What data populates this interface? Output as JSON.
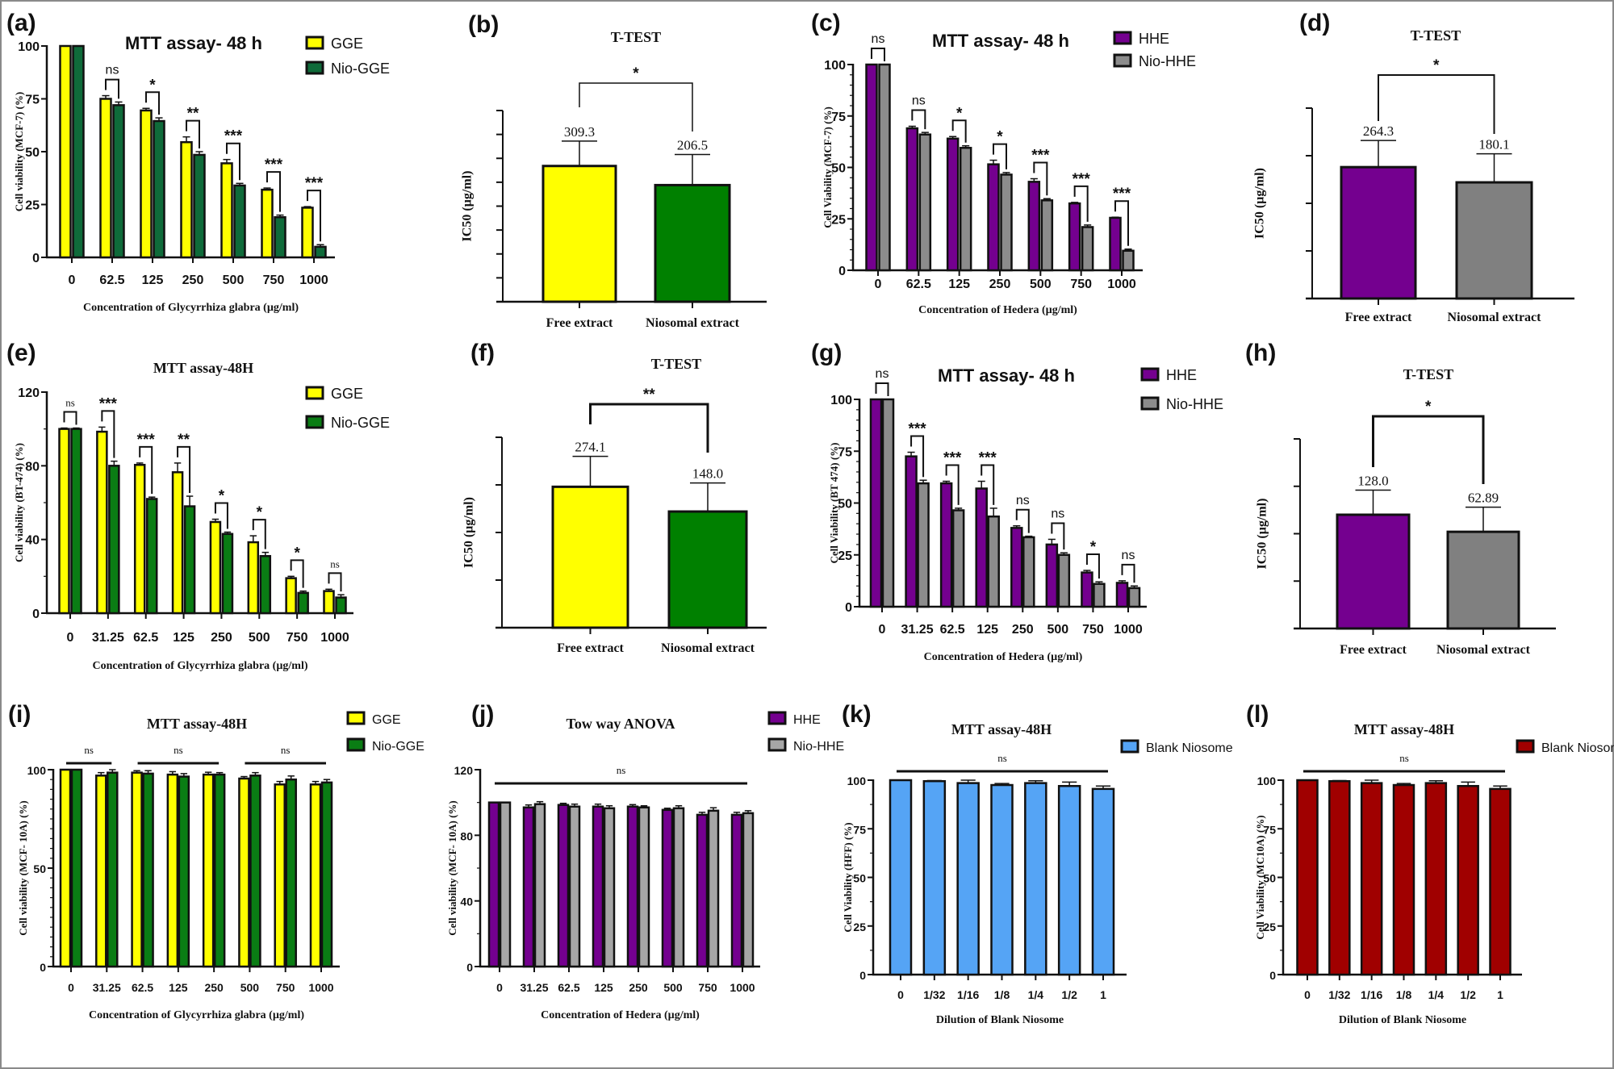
{
  "chart_data": [
    {
      "panel": "(a)",
      "type": "bar",
      "title": "MTT assay- 48 h",
      "xlabel": "Concentration of Glycyrrhiza glabra (µg/ml)",
      "ylabel": "Cell viability (MCF-7) (%)",
      "categories": [
        "0",
        "62.5",
        "125",
        "250",
        "500",
        "750",
        "1000"
      ],
      "ylim": [
        0,
        100
      ],
      "yticks": [
        "0",
        "25",
        "50",
        "75",
        "100"
      ],
      "legend": "top-right",
      "series": [
        {
          "name": "GGE",
          "color": "#ffff00",
          "values": [
            100,
            75,
            69.5,
            54.5,
            44.5,
            32,
            23.5
          ],
          "errors": [
            0,
            1.5,
            1,
            2.5,
            1.8,
            0.8,
            0.5
          ]
        },
        {
          "name": "Nio-GGE",
          "color": "#0f6b3a",
          "values": [
            100,
            72,
            64.5,
            48.5,
            34,
            19,
            5
          ],
          "errors": [
            0,
            1.5,
            1.5,
            1.5,
            1,
            1,
            1
          ]
        }
      ],
      "significance": [
        null,
        "ns",
        "*",
        "**",
        "***",
        "***",
        "***"
      ]
    },
    {
      "panel": "(b)",
      "type": "bar",
      "title": "T-TEST",
      "ylabel": "IC50 (µg/ml)",
      "categories": [
        "Free extract",
        "Niosomal extract"
      ],
      "values": [
        309.3,
        206.5
      ],
      "value_labels": [
        "309.3",
        "206.5"
      ],
      "bar_level": [
        0.71,
        0.61
      ],
      "error_level": [
        0.84,
        0.77
      ],
      "colors": [
        "#ffff00",
        "#008000"
      ],
      "significance": "*"
    },
    {
      "panel": "(c)",
      "type": "bar",
      "title": "MTT assay- 48 h",
      "xlabel": "Concentration of Hedera (µg/ml)",
      "ylabel": "Cell Viability (MCF-7) (%)",
      "categories": [
        "0",
        "62.5",
        "125",
        "250",
        "500",
        "750",
        "1000"
      ],
      "ylim": [
        0,
        100
      ],
      "yticks": [
        "0",
        "25",
        "50",
        "75",
        "100"
      ],
      "legend": "top-right",
      "series": [
        {
          "name": "HHE",
          "color": "#74008f",
          "values": [
            100,
            69,
            64,
            51.5,
            43,
            32.5,
            25.5
          ],
          "errors": [
            0,
            1,
            1,
            2,
            1.5,
            0.5,
            0.3
          ]
        },
        {
          "name": "Nio-HHE",
          "color": "#8c8c8c",
          "values": [
            100,
            66,
            59.5,
            46.5,
            34,
            21,
            9.5
          ],
          "errors": [
            0,
            1,
            1,
            1,
            0.8,
            1,
            0.8
          ]
        }
      ],
      "significance": [
        "ns",
        "ns",
        "*",
        "*",
        "***",
        "***",
        "***"
      ]
    },
    {
      "panel": "(d)",
      "type": "bar",
      "title": "T-TEST",
      "ylabel": "IC50 (µg/ml)",
      "categories": [
        "Free extract",
        "Niosomal extract"
      ],
      "values": [
        264.3,
        180.1
      ],
      "value_labels": [
        "264.3",
        "180.1"
      ],
      "bar_level": [
        0.69,
        0.61
      ],
      "error_level": [
        0.83,
        0.76
      ],
      "colors": [
        "#74008f",
        "#808080"
      ],
      "significance": "*"
    },
    {
      "panel": "(e)",
      "type": "bar",
      "title": "MTT assay-48H",
      "xlabel": "Concentration of Glycyrrhiza glabra (µg/ml)",
      "ylabel": "Cell viability (BT-474) (%)",
      "categories": [
        "0",
        "31.25",
        "62.5",
        "125",
        "250",
        "500",
        "750",
        "1000"
      ],
      "ylim": [
        0,
        120
      ],
      "yticks": [
        "0",
        "40",
        "80",
        "120"
      ],
      "legend": "top-right",
      "series": [
        {
          "name": "GGE",
          "color": "#ffff00",
          "values": [
            100,
            98.5,
            80.5,
            76.5,
            49.5,
            38.5,
            19,
            12
          ],
          "errors": [
            0.5,
            2.5,
            1,
            5,
            1.5,
            3.5,
            1,
            1
          ]
        },
        {
          "name": "Nio-GGE",
          "color": "#0a7d14",
          "values": [
            100,
            80,
            62,
            58,
            43,
            31,
            11,
            8.5
          ],
          "errors": [
            0.5,
            2.5,
            1,
            5.5,
            1,
            2,
            1,
            1.5
          ]
        }
      ],
      "significance": [
        "ns",
        "***",
        "***",
        "**",
        "*",
        "*",
        "*",
        "ns"
      ]
    },
    {
      "panel": "(f)",
      "type": "bar",
      "title": "T-TEST",
      "ylabel": "IC50 (µg/ml)",
      "categories": [
        "Free extract",
        "Niosomal extract"
      ],
      "values": [
        274.1,
        148.0
      ],
      "value_labels": [
        "274.1",
        "148.0"
      ],
      "bar_level": [
        0.74,
        0.61
      ],
      "error_level": [
        0.9,
        0.76
      ],
      "colors": [
        "#ffff00",
        "#008000"
      ],
      "significance": "**"
    },
    {
      "panel": "(g)",
      "type": "bar",
      "title": "MTT assay- 48 h",
      "xlabel": "Concentration of Hedera (µg/ml)",
      "ylabel": "Cell Viability (BT 474) (%)",
      "categories": [
        "0",
        "31.25",
        "62.5",
        "125",
        "250",
        "500",
        "750",
        "1000"
      ],
      "ylim": [
        0,
        100
      ],
      "yticks": [
        "0",
        "25",
        "50",
        "75",
        "100"
      ],
      "legend": "top-right",
      "series": [
        {
          "name": "HHE",
          "color": "#74008f",
          "values": [
            100,
            72.5,
            59.5,
            57,
            38,
            30,
            16.5,
            11.5
          ],
          "errors": [
            0,
            2,
            1,
            3.5,
            1,
            2.5,
            1,
            1
          ]
        },
        {
          "name": "Nio-HHE",
          "color": "#8c8c8c",
          "values": [
            100,
            59.5,
            46.5,
            43.5,
            33.5,
            25,
            11,
            9
          ],
          "errors": [
            0,
            1.5,
            1,
            4,
            0.5,
            1,
            1,
            1
          ]
        }
      ],
      "significance": [
        "ns",
        "***",
        "***",
        "***",
        "ns",
        "ns",
        "*",
        "ns"
      ]
    },
    {
      "panel": "(h)",
      "type": "bar",
      "title": "T-TEST",
      "ylabel": "IC50 (µg/ml)",
      "categories": [
        "Free extract",
        "Niosomal extract"
      ],
      "values": [
        128.0,
        62.89
      ],
      "value_labels": [
        "128.0",
        "62.89"
      ],
      "bar_level": [
        0.6,
        0.51
      ],
      "error_level": [
        0.73,
        0.64
      ],
      "colors": [
        "#74008f",
        "#808080"
      ],
      "significance": "*"
    },
    {
      "panel": "(i)",
      "type": "bar",
      "title": "MTT assay-48H",
      "xlabel": "Concentration of Glycyrrhiza glabra (µg/ml)",
      "ylabel": "Cell viability (MCF- 10A)  (%)",
      "categories": [
        "0",
        "31.25",
        "62.5",
        "125",
        "250",
        "500",
        "750",
        "1000"
      ],
      "ylim": [
        0,
        100
      ],
      "yticks": [
        "0",
        "50",
        "100"
      ],
      "legend": "top-right",
      "series": [
        {
          "name": "GGE",
          "color": "#ffff00",
          "values": [
            100,
            97,
            98.5,
            97.5,
            97.5,
            95.5,
            92.5,
            92.5
          ],
          "errors": [
            0,
            1.5,
            1,
            1.5,
            1.2,
            1,
            1.5,
            1.5
          ]
        },
        {
          "name": "Nio-GGE",
          "color": "#0a7d14",
          "values": [
            100,
            98.5,
            98,
            96.5,
            97.5,
            97,
            95,
            93.5
          ],
          "errors": [
            0,
            1.5,
            1.5,
            1.5,
            1,
            1.5,
            1.8,
            1.5
          ]
        }
      ],
      "significance_spans": [
        {
          "from": 0,
          "to": 1,
          "label": "ns"
        },
        {
          "from": 2,
          "to": 4,
          "label": "ns"
        },
        {
          "from": 5,
          "to": 7,
          "label": "ns"
        }
      ]
    },
    {
      "panel": "(j)",
      "type": "bar",
      "title": "Tow way ANOVA",
      "xlabel": "Concentration of Hedera (µg/ml)",
      "ylabel": "Cell viability (MCF- 10A)  (%)",
      "categories": [
        "0",
        "31.25",
        "62.5",
        "125",
        "250",
        "500",
        "750",
        "1000"
      ],
      "ylim": [
        0,
        120
      ],
      "yticks": [
        "0",
        "40",
        "80",
        "120"
      ],
      "legend": "top-right",
      "series": [
        {
          "name": "HHE",
          "color": "#74008f",
          "values": [
            100,
            97,
            98.5,
            97.5,
            97.5,
            95.5,
            92.5,
            92.5
          ],
          "errors": [
            0,
            1.5,
            1,
            1.5,
            1.2,
            1,
            1.5,
            1.5
          ]
        },
        {
          "name": "Nio-HHE",
          "color": "#a6a6a6",
          "values": [
            100,
            99,
            97.5,
            96.5,
            97,
            96.5,
            95,
            93.5
          ],
          "errors": [
            0,
            1.5,
            1.5,
            1.5,
            1,
            1.5,
            1.8,
            1.5
          ]
        }
      ],
      "significance_spans": [
        {
          "from": 0,
          "to": 7,
          "label": "ns"
        }
      ]
    },
    {
      "panel": "(k)",
      "type": "bar",
      "title": "MTT assay-48H",
      "xlabel": "Dilution of Blank Niosome",
      "ylabel": "Cell Viability (HFF) (%)",
      "categories": [
        "0",
        "1/32",
        "1/16",
        "1/8",
        "1/4",
        "1/2",
        "1"
      ],
      "ylim": [
        0,
        100
      ],
      "yticks": [
        "0",
        "25",
        "50",
        "75",
        "100"
      ],
      "legend": "top-right",
      "series": [
        {
          "name": "Blank Niosome",
          "color": "#55a4f5",
          "values": [
            100,
            99.5,
            98.5,
            97.5,
            98.5,
            97,
            95.5
          ],
          "errors": [
            0,
            0.3,
            1.5,
            0.8,
            1.2,
            2,
            1.5
          ]
        }
      ],
      "significance_spans": [
        {
          "from": 0,
          "to": 6,
          "label": "ns"
        }
      ]
    },
    {
      "panel": "(l)",
      "type": "bar",
      "title": "MTT assay-48H",
      "xlabel": "Dilution of Blank Niosome",
      "ylabel": "Cell Viability (MC10A) (%)",
      "categories": [
        "0",
        "1/32",
        "1/16",
        "1/8",
        "1/4",
        "1/2",
        "1"
      ],
      "ylim": [
        0,
        100
      ],
      "yticks": [
        "0",
        "25",
        "50",
        "75",
        "100"
      ],
      "legend": "top-right",
      "series": [
        {
          "name": "Blank Niosome",
          "color": "#a00000",
          "values": [
            100,
            99.5,
            98.5,
            97.5,
            98.5,
            97,
            95.5
          ],
          "errors": [
            0,
            0.3,
            1.5,
            0.8,
            1.2,
            2,
            1.5
          ]
        }
      ],
      "significance_spans": [
        {
          "from": 0,
          "to": 6,
          "label": "ns"
        }
      ]
    }
  ]
}
